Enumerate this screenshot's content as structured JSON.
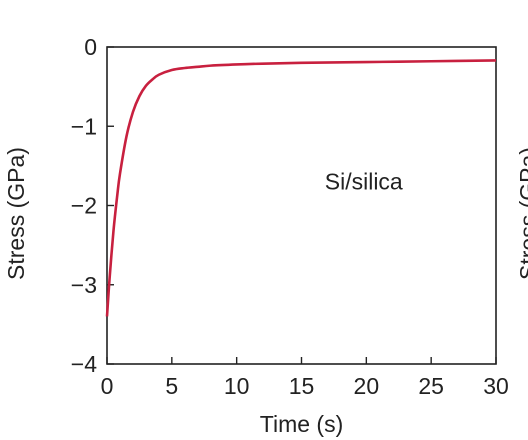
{
  "chart_data": {
    "type": "line",
    "xlabel": "Time (s)",
    "ylabel": "Stress (GPa)",
    "xlim": [
      0,
      30
    ],
    "ylim": [
      -4,
      0
    ],
    "xticks": [
      0,
      5,
      10,
      15,
      20,
      25,
      30
    ],
    "xtick_labels": [
      "0",
      "5",
      "10",
      "15",
      "20",
      "25",
      "30"
    ],
    "yticks": [
      0,
      -1,
      -2,
      -3,
      -4
    ],
    "ytick_labels": [
      "0",
      "−1",
      "−2",
      "−3",
      "−4"
    ],
    "grid": false,
    "annotations": [
      {
        "text": "Si/silica",
        "x": 22.5,
        "y": -1.7
      }
    ],
    "series": [
      {
        "color": "#c8203f",
        "x": [
          0,
          0.2,
          0.5,
          0.8,
          1.0,
          1.5,
          2.0,
          2.5,
          3.0,
          3.5,
          4.0,
          5.0,
          6.0,
          7.0,
          8.0,
          10.0,
          12.0,
          15.0,
          20.0,
          25.0,
          30.0
        ],
        "y": [
          -3.4,
          -2.92,
          -2.32,
          -1.86,
          -1.6,
          -1.13,
          -0.82,
          -0.62,
          -0.49,
          -0.41,
          -0.35,
          -0.29,
          -0.265,
          -0.25,
          -0.235,
          -0.22,
          -0.21,
          -0.2,
          -0.19,
          -0.18,
          -0.17
        ]
      }
    ]
  },
  "right_panel_fragment": "Stress (GPa)"
}
